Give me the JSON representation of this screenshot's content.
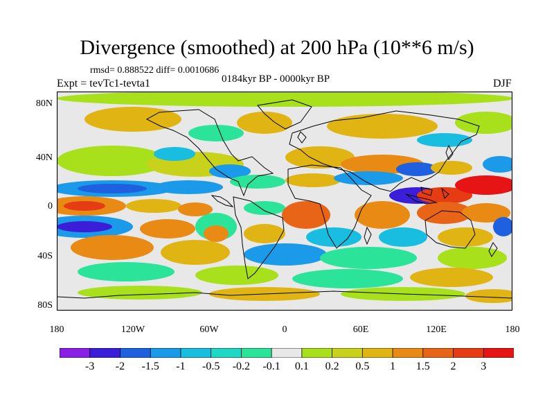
{
  "title": "Divergence (smoothed) at 200 hPa (10**6 m/s)",
  "stats": "rmsd= 0.888522 diff= 0.0010686",
  "period": "0184kyr BP - 0000kyr BP",
  "experiment": "Expt = tevTc1-tevta1",
  "season": "DJF",
  "y_axis_labels": [
    "80N",
    "40N",
    "0",
    "40S",
    "80S"
  ],
  "x_axis_labels": [
    "180",
    "120W",
    "60W",
    "0",
    "60E",
    "120E",
    "180"
  ],
  "colorbar": {
    "labels": [
      "-3",
      "-2",
      "-1.5",
      "-1",
      "-0.5",
      "-0.2",
      "-0.1",
      "0.1",
      "0.2",
      "0.5",
      "1",
      "1.5",
      "2",
      "3"
    ],
    "colors": [
      "#8a1fe6",
      "#3a1ed8",
      "#1e60e0",
      "#1a9ae8",
      "#18bde0",
      "#1ed8c4",
      "#2ce39a",
      "#e8e8e8",
      "#a8e01c",
      "#c8d21a",
      "#e0b412",
      "#e88a14",
      "#e86416",
      "#e63c14",
      "#e61414"
    ]
  },
  "palette": {
    "v3n": "#3a1ed8",
    "v2n": "#1e60e0",
    "v1n": "#1a9ae8",
    "v05n": "#18bde0",
    "v02n": "#1ed8c4",
    "v01n": "#2ce39a",
    "zero": "#e8e8e8",
    "v01": "#a8e01c",
    "v02": "#c8d21a",
    "v05": "#e0b412",
    "v1": "#e88a14",
    "v15": "#e86416",
    "v2": "#e63c14",
    "v3": "#e61414"
  }
}
